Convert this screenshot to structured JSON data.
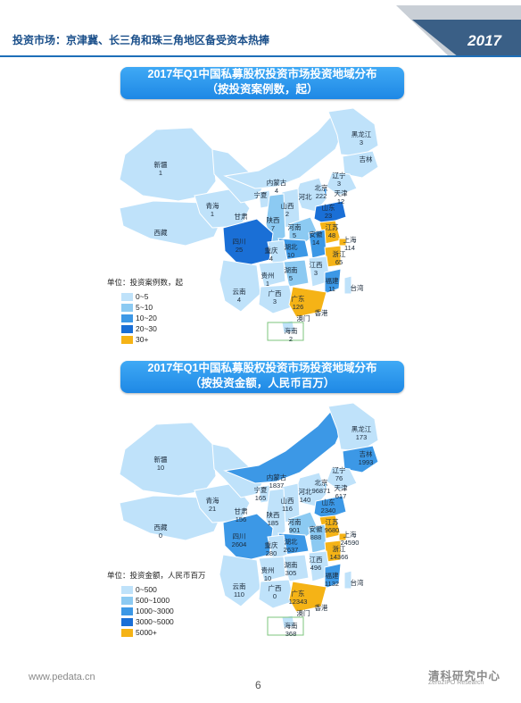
{
  "header": {
    "title": "投资市场：京津冀、长三角和珠三角地区备受资本热捧",
    "year": "2017"
  },
  "colors": {
    "level1": "#bfe2fa",
    "level2": "#8ccaf2",
    "level3": "#3c98e6",
    "level4": "#1a6fd6",
    "level5": "#f5b316",
    "title_bg": "#2a93ea",
    "header_blue": "#1d6fb8"
  },
  "map1": {
    "title_line1": "2017年Q1中国私募股权投资市场投资地域分布",
    "title_line2": "（按投资案例数，起）",
    "legend_title": "单位：投资案例数，起",
    "legend": [
      "0~5",
      "5~10",
      "10~20",
      "20~30",
      "30+"
    ],
    "labels": [
      {
        "id": "heilongjiang",
        "name": "黑龙江",
        "value": "3"
      },
      {
        "id": "jilin",
        "name": "吉林",
        "value": ""
      },
      {
        "id": "liaoning",
        "name": "辽宁",
        "value": "3"
      },
      {
        "id": "xinjiang",
        "name": "新疆",
        "value": "1"
      },
      {
        "id": "neimenggu",
        "name": "内蒙古",
        "value": "4"
      },
      {
        "id": "beijing",
        "name": "北京",
        "value": "222"
      },
      {
        "id": "tianjin",
        "name": "天津",
        "value": "12"
      },
      {
        "id": "hebei",
        "name": "河北",
        "value": ""
      },
      {
        "id": "shanxi",
        "name": "山西",
        "value": "2"
      },
      {
        "id": "shandong",
        "name": "山东",
        "value": "23"
      },
      {
        "id": "ningxia",
        "name": "宁夏",
        "value": ""
      },
      {
        "id": "qinghai",
        "name": "青海",
        "value": "1"
      },
      {
        "id": "gansu",
        "name": "甘肃",
        "value": ""
      },
      {
        "id": "shaanxi",
        "name": "陕西",
        "value": "7"
      },
      {
        "id": "henan",
        "name": "河南",
        "value": "5"
      },
      {
        "id": "jiangsu",
        "name": "江苏",
        "value": "48"
      },
      {
        "id": "shanghai",
        "name": "上海",
        "value": "114"
      },
      {
        "id": "anhui",
        "name": "安徽",
        "value": "14"
      },
      {
        "id": "xizang",
        "name": "西藏",
        "value": ""
      },
      {
        "id": "sichuan",
        "name": "四川",
        "value": "25"
      },
      {
        "id": "chongqing",
        "name": "重庆",
        "value": "4"
      },
      {
        "id": "hubei",
        "name": "湖北",
        "value": "10"
      },
      {
        "id": "zhejiang",
        "name": "浙江",
        "value": "65"
      },
      {
        "id": "jiangxi",
        "name": "江西",
        "value": "3"
      },
      {
        "id": "hunan",
        "name": "湖南",
        "value": "5"
      },
      {
        "id": "guizhou",
        "name": "贵州",
        "value": "1"
      },
      {
        "id": "fujian",
        "name": "福建",
        "value": "11"
      },
      {
        "id": "yunnan",
        "name": "云南",
        "value": "4"
      },
      {
        "id": "guangxi",
        "name": "广西",
        "value": "3"
      },
      {
        "id": "guangdong",
        "name": "广东",
        "value": "126"
      },
      {
        "id": "taiwan",
        "name": "台湾",
        "value": ""
      },
      {
        "id": "aomen",
        "name": "澳门",
        "value": ""
      },
      {
        "id": "xianggang",
        "name": "香港",
        "value": ""
      },
      {
        "id": "hainan",
        "name": "海南",
        "value": "2"
      }
    ]
  },
  "map2": {
    "title_line1": "2017年Q1中国私募股权投资市场投资地域分布",
    "title_line2": "（按投资金额，人民币百万）",
    "legend_title": "单位：投资金额，人民币百万",
    "legend": [
      "0~500",
      "500~1000",
      "1000~3000",
      "3000~5000",
      "5000+"
    ],
    "labels": [
      {
        "id": "heilongjiang",
        "name": "黑龙江",
        "value": "173"
      },
      {
        "id": "jilin",
        "name": "吉林",
        "value": "1993"
      },
      {
        "id": "liaoning",
        "name": "辽宁",
        "value": "76"
      },
      {
        "id": "xinjiang",
        "name": "新疆",
        "value": "10"
      },
      {
        "id": "neimenggu",
        "name": "内蒙古",
        "value": "1837"
      },
      {
        "id": "beijing",
        "name": "北京",
        "value": "96871"
      },
      {
        "id": "tianjin",
        "name": "天津",
        "value": "617"
      },
      {
        "id": "hebei",
        "name": "河北",
        "value": "140"
      },
      {
        "id": "shanxi",
        "name": "山西",
        "value": "116"
      },
      {
        "id": "shandong",
        "name": "山东",
        "value": "2340"
      },
      {
        "id": "ningxia",
        "name": "宁夏",
        "value": "165"
      },
      {
        "id": "qinghai",
        "name": "青海",
        "value": "21"
      },
      {
        "id": "gansu",
        "name": "甘肃",
        "value": "156"
      },
      {
        "id": "shaanxi",
        "name": "陕西",
        "value": "185"
      },
      {
        "id": "henan",
        "name": "河南",
        "value": "901"
      },
      {
        "id": "jiangsu",
        "name": "江苏",
        "value": "9680"
      },
      {
        "id": "shanghai",
        "name": "上海",
        "value": "24590"
      },
      {
        "id": "anhui",
        "name": "安徽",
        "value": "888"
      },
      {
        "id": "xizang",
        "name": "西藏",
        "value": "0"
      },
      {
        "id": "sichuan",
        "name": "四川",
        "value": "2604"
      },
      {
        "id": "chongqing",
        "name": "重庆",
        "value": "280"
      },
      {
        "id": "hubei",
        "name": "湖北",
        "value": "2637"
      },
      {
        "id": "zhejiang",
        "name": "浙江",
        "value": "14366"
      },
      {
        "id": "jiangxi",
        "name": "江西",
        "value": "496"
      },
      {
        "id": "hunan",
        "name": "湖南",
        "value": "305"
      },
      {
        "id": "guizhou",
        "name": "贵州",
        "value": "10"
      },
      {
        "id": "fujian",
        "name": "福建",
        "value": "1132"
      },
      {
        "id": "yunnan",
        "name": "云南",
        "value": "110"
      },
      {
        "id": "guangxi",
        "name": "广西",
        "value": "0"
      },
      {
        "id": "guangdong",
        "name": "广东",
        "value": "12343"
      },
      {
        "id": "taiwan",
        "name": "台湾",
        "value": ""
      },
      {
        "id": "aomen",
        "name": "澳门",
        "value": ""
      },
      {
        "id": "xianggang",
        "name": "香港",
        "value": ""
      },
      {
        "id": "hainan",
        "name": "海南",
        "value": "368"
      }
    ]
  },
  "footer": {
    "url": "www.pedata.cn",
    "page": "6",
    "brand": "清科研究中心",
    "brand_sub": "Zero2IPO Research"
  }
}
